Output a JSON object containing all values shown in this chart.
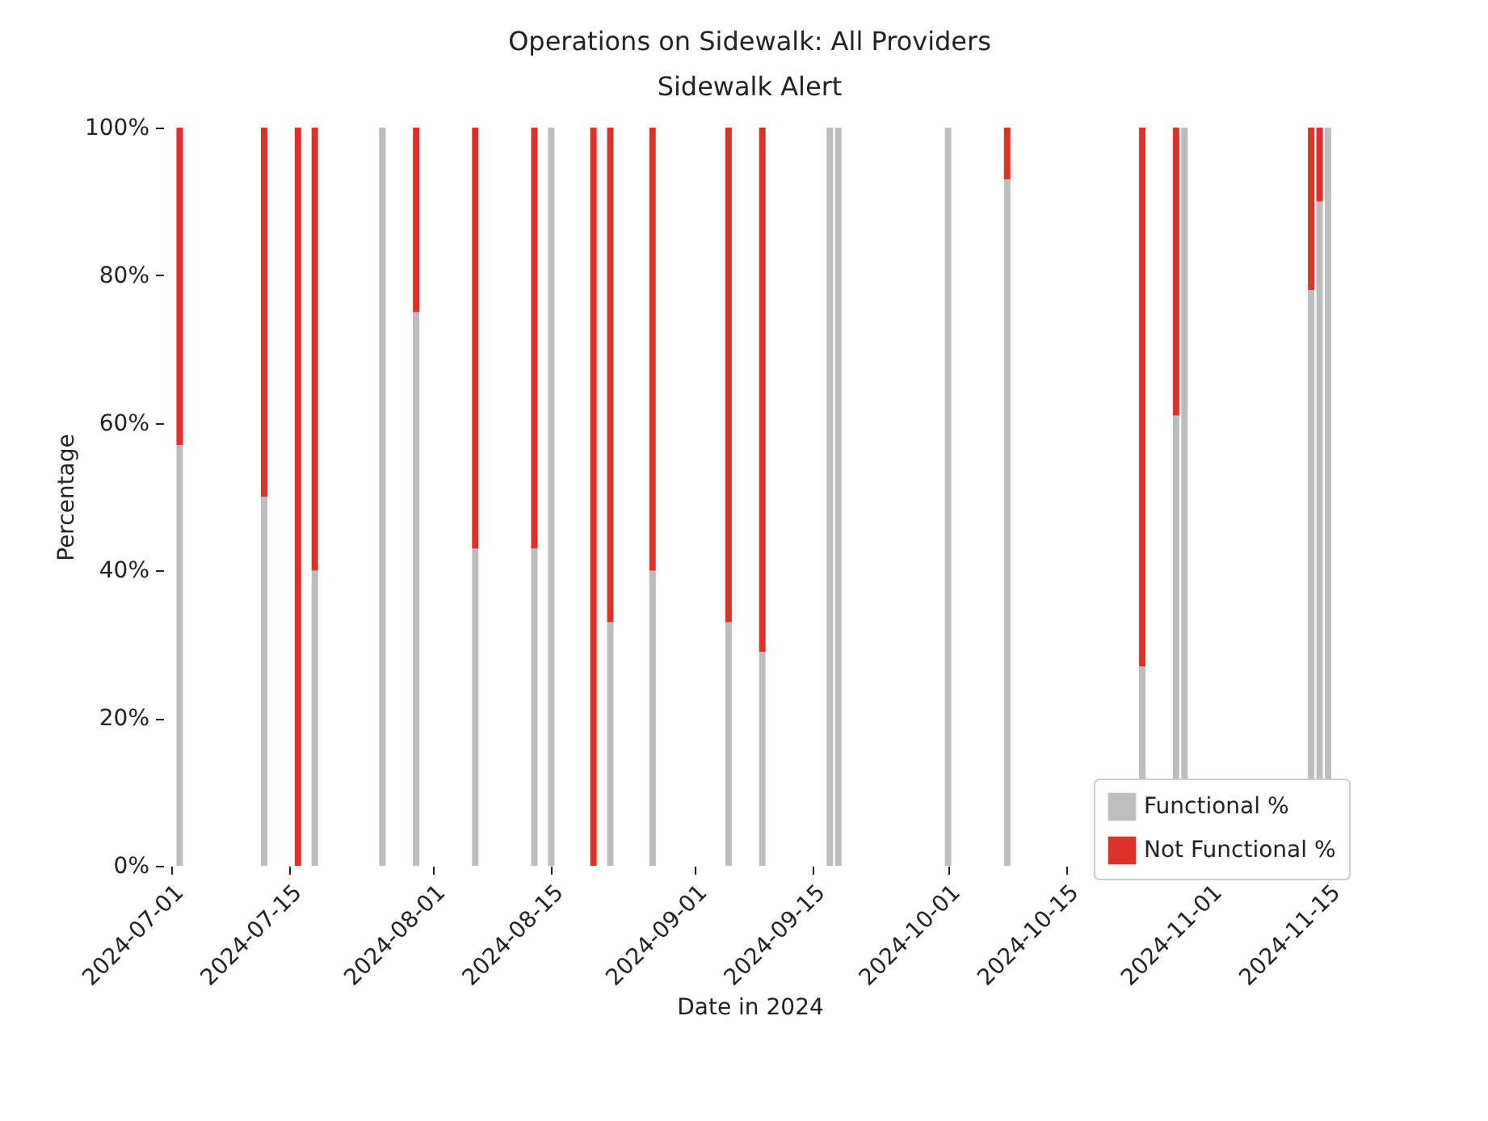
{
  "chart_data": {
    "type": "bar",
    "title": "Operations on Sidewalk: All Providers",
    "subtitle": "Sidewalk Alert",
    "xlabel": "Date in 2024",
    "ylabel": "Percentage",
    "x": [
      "2024-07-02",
      "2024-07-12",
      "2024-07-16",
      "2024-07-18",
      "2024-07-26",
      "2024-07-30",
      "2024-08-06",
      "2024-08-13",
      "2024-08-15",
      "2024-08-20",
      "2024-08-22",
      "2024-08-27",
      "2024-09-05",
      "2024-09-09",
      "2024-09-17",
      "2024-09-18",
      "2024-10-01",
      "2024-10-08",
      "2024-10-24",
      "2024-10-28",
      "2024-10-29",
      "2024-11-13",
      "2024-11-14",
      "2024-11-15"
    ],
    "series": [
      {
        "name": "Functional %",
        "color": "#bdbdbd",
        "values": [
          57,
          50,
          0,
          40,
          100,
          75,
          43,
          43,
          100,
          0,
          33,
          40,
          33,
          29,
          100,
          100,
          100,
          93,
          27,
          61,
          100,
          78,
          90,
          100
        ]
      },
      {
        "name": "Not Functional %",
        "color": "#e0302a",
        "values": [
          43,
          50,
          100,
          60,
          0,
          25,
          57,
          57,
          0,
          100,
          67,
          60,
          67,
          71,
          0,
          0,
          0,
          7,
          73,
          39,
          0,
          22,
          10,
          0
        ]
      }
    ],
    "stacked": true,
    "xlim": [
      "2024-07-01",
      "2024-11-15"
    ],
    "xticks": [
      "2024-07-01",
      "2024-07-15",
      "2024-08-01",
      "2024-08-15",
      "2024-09-01",
      "2024-09-15",
      "2024-10-01",
      "2024-10-15",
      "2024-11-01",
      "2024-11-15"
    ],
    "ylim": [
      0,
      100
    ],
    "yticks": [
      {
        "value": 0,
        "label": "0%"
      },
      {
        "value": 20,
        "label": "20%"
      },
      {
        "value": 40,
        "label": "40%"
      },
      {
        "value": 60,
        "label": "60%"
      },
      {
        "value": 80,
        "label": "80%"
      },
      {
        "value": 100,
        "label": "100%"
      }
    ],
    "legend": "bottom right"
  }
}
